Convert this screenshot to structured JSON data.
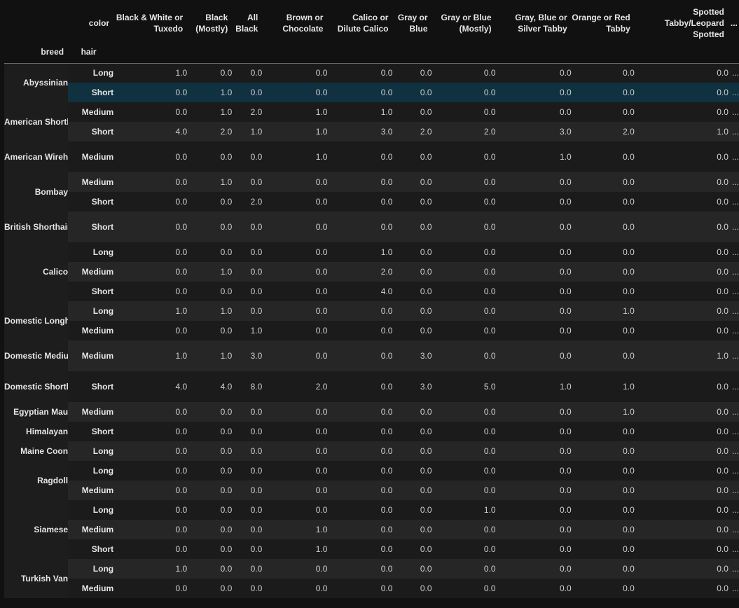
{
  "header": {
    "corner_label": "color",
    "index_names": [
      "breed",
      "hair"
    ],
    "columns": [
      "Black & White or Tuxedo",
      "Black (Mostly)",
      "All Black",
      "Brown or Chocolate",
      "Calico or Dilute Calico",
      "Gray or Blue",
      "Gray or Blue (Mostly)",
      "Gray, Blue or Silver Tabby",
      "Orange or Red Tabby",
      "Spotted Tabby/Leopard Spotted"
    ],
    "ellipsis": "..."
  },
  "rows": [
    {
      "breed": "Abyssinian",
      "hair": "Long",
      "values": [
        "1.0",
        "0.0",
        "0.0",
        "0.0",
        "0.0",
        "0.0",
        "0.0",
        "0.0",
        "0.0",
        "0.0"
      ]
    },
    {
      "breed": "",
      "hair": "Short",
      "values": [
        "0.0",
        "1.0",
        "0.0",
        "0.0",
        "0.0",
        "0.0",
        "0.0",
        "0.0",
        "0.0",
        "0.0"
      ]
    },
    {
      "breed": "American Shorthair",
      "hair": "Medium",
      "values": [
        "0.0",
        "1.0",
        "2.0",
        "1.0",
        "1.0",
        "0.0",
        "0.0",
        "0.0",
        "0.0",
        "0.0"
      ]
    },
    {
      "breed": "",
      "hair": "Short",
      "values": [
        "4.0",
        "2.0",
        "1.0",
        "1.0",
        "3.0",
        "2.0",
        "2.0",
        "3.0",
        "2.0",
        "1.0"
      ]
    },
    {
      "breed": "American Wirehair",
      "hair": "Medium",
      "values": [
        "0.0",
        "0.0",
        "0.0",
        "1.0",
        "0.0",
        "0.0",
        "0.0",
        "1.0",
        "0.0",
        "0.0"
      ]
    },
    {
      "breed": "Bombay",
      "hair": "Medium",
      "values": [
        "0.0",
        "1.0",
        "0.0",
        "0.0",
        "0.0",
        "0.0",
        "0.0",
        "0.0",
        "0.0",
        "0.0"
      ]
    },
    {
      "breed": "",
      "hair": "Short",
      "values": [
        "0.0",
        "0.0",
        "2.0",
        "0.0",
        "0.0",
        "0.0",
        "0.0",
        "0.0",
        "0.0",
        "0.0"
      ]
    },
    {
      "breed": "British Shorthair",
      "hair": "Short",
      "values": [
        "0.0",
        "0.0",
        "0.0",
        "0.0",
        "0.0",
        "0.0",
        "0.0",
        "0.0",
        "0.0",
        "0.0"
      ]
    },
    {
      "breed": "Calico",
      "hair": "Long",
      "values": [
        "0.0",
        "0.0",
        "0.0",
        "0.0",
        "1.0",
        "0.0",
        "0.0",
        "0.0",
        "0.0",
        "0.0"
      ]
    },
    {
      "breed": "",
      "hair": "Medium",
      "values": [
        "0.0",
        "1.0",
        "0.0",
        "0.0",
        "2.0",
        "0.0",
        "0.0",
        "0.0",
        "0.0",
        "0.0"
      ]
    },
    {
      "breed": "",
      "hair": "Short",
      "values": [
        "0.0",
        "0.0",
        "0.0",
        "0.0",
        "4.0",
        "0.0",
        "0.0",
        "0.0",
        "0.0",
        "0.0"
      ]
    },
    {
      "breed": "Domestic Longhair",
      "hair": "Long",
      "values": [
        "1.0",
        "1.0",
        "0.0",
        "0.0",
        "0.0",
        "0.0",
        "0.0",
        "0.0",
        "1.0",
        "0.0"
      ]
    },
    {
      "breed": "",
      "hair": "Medium",
      "values": [
        "0.0",
        "0.0",
        "1.0",
        "0.0",
        "0.0",
        "0.0",
        "0.0",
        "0.0",
        "0.0",
        "0.0"
      ]
    },
    {
      "breed": "Domestic Mediumhair",
      "hair": "Medium",
      "values": [
        "1.0",
        "1.0",
        "3.0",
        "0.0",
        "0.0",
        "3.0",
        "0.0",
        "0.0",
        "0.0",
        "1.0"
      ]
    },
    {
      "breed": "Domestic Shorthair",
      "hair": "Short",
      "values": [
        "4.0",
        "4.0",
        "8.0",
        "2.0",
        "0.0",
        "3.0",
        "5.0",
        "1.0",
        "1.0",
        "0.0"
      ]
    },
    {
      "breed": "Egyptian Mau",
      "hair": "Medium",
      "values": [
        "0.0",
        "0.0",
        "0.0",
        "0.0",
        "0.0",
        "0.0",
        "0.0",
        "0.0",
        "1.0",
        "0.0"
      ]
    },
    {
      "breed": "Himalayan",
      "hair": "Short",
      "values": [
        "0.0",
        "0.0",
        "0.0",
        "0.0",
        "0.0",
        "0.0",
        "0.0",
        "0.0",
        "0.0",
        "0.0"
      ]
    },
    {
      "breed": "Maine Coon",
      "hair": "Long",
      "values": [
        "0.0",
        "0.0",
        "0.0",
        "0.0",
        "0.0",
        "0.0",
        "0.0",
        "0.0",
        "0.0",
        "0.0"
      ]
    },
    {
      "breed": "Ragdoll",
      "hair": "Long",
      "values": [
        "0.0",
        "0.0",
        "0.0",
        "0.0",
        "0.0",
        "0.0",
        "0.0",
        "0.0",
        "0.0",
        "0.0"
      ]
    },
    {
      "breed": "",
      "hair": "Medium",
      "values": [
        "0.0",
        "0.0",
        "0.0",
        "0.0",
        "0.0",
        "0.0",
        "0.0",
        "0.0",
        "0.0",
        "0.0"
      ]
    },
    {
      "breed": "Siamese",
      "hair": "Long",
      "values": [
        "0.0",
        "0.0",
        "0.0",
        "0.0",
        "0.0",
        "0.0",
        "1.0",
        "0.0",
        "0.0",
        "0.0"
      ]
    },
    {
      "breed": "",
      "hair": "Medium",
      "values": [
        "0.0",
        "0.0",
        "0.0",
        "1.0",
        "0.0",
        "0.0",
        "0.0",
        "0.0",
        "0.0",
        "0.0"
      ]
    },
    {
      "breed": "",
      "hair": "Short",
      "values": [
        "0.0",
        "0.0",
        "0.0",
        "1.0",
        "0.0",
        "0.0",
        "0.0",
        "0.0",
        "0.0",
        "0.0"
      ]
    },
    {
      "breed": "Turkish Van",
      "hair": "Long",
      "values": [
        "1.0",
        "0.0",
        "0.0",
        "0.0",
        "0.0",
        "0.0",
        "0.0",
        "0.0",
        "0.0",
        "0.0"
      ]
    },
    {
      "breed": "",
      "hair": "Medium",
      "values": [
        "0.0",
        "0.0",
        "0.0",
        "0.0",
        "0.0",
        "0.0",
        "0.0",
        "0.0",
        "0.0",
        "0.0"
      ]
    }
  ],
  "highlight_row": 1
}
